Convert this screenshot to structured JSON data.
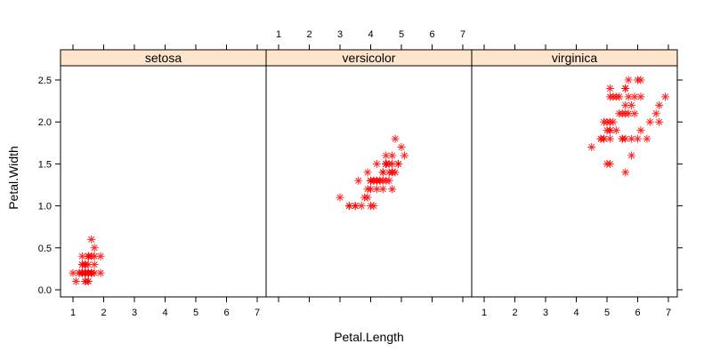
{
  "chart_data": {
    "type": "scatter",
    "title": "",
    "xlabel": "Petal.Length",
    "ylabel": "Petal.Width",
    "xlim": [
      0.6,
      7.3
    ],
    "ylim": [
      -0.1,
      2.65
    ],
    "x_ticks": [
      1,
      2,
      3,
      4,
      5,
      6,
      7
    ],
    "y_ticks": [
      "0.0",
      "0.5",
      "1.0",
      "1.5",
      "2.0",
      "2.5"
    ],
    "grid": false,
    "marker": "asterisk",
    "marker_color": "#FF0000",
    "strip_color": "#FFE5CC",
    "panels": [
      {
        "name": "setosa",
        "points": [
          [
            1.4,
            0.2
          ],
          [
            1.4,
            0.2
          ],
          [
            1.3,
            0.2
          ],
          [
            1.5,
            0.2
          ],
          [
            1.4,
            0.2
          ],
          [
            1.7,
            0.4
          ],
          [
            1.4,
            0.3
          ],
          [
            1.5,
            0.2
          ],
          [
            1.4,
            0.2
          ],
          [
            1.5,
            0.1
          ],
          [
            1.5,
            0.2
          ],
          [
            1.6,
            0.2
          ],
          [
            1.4,
            0.1
          ],
          [
            1.1,
            0.1
          ],
          [
            1.2,
            0.2
          ],
          [
            1.5,
            0.4
          ],
          [
            1.3,
            0.4
          ],
          [
            1.4,
            0.3
          ],
          [
            1.7,
            0.3
          ],
          [
            1.5,
            0.3
          ],
          [
            1.7,
            0.2
          ],
          [
            1.5,
            0.4
          ],
          [
            1.0,
            0.2
          ],
          [
            1.7,
            0.5
          ],
          [
            1.9,
            0.2
          ],
          [
            1.6,
            0.2
          ],
          [
            1.6,
            0.4
          ],
          [
            1.5,
            0.2
          ],
          [
            1.4,
            0.2
          ],
          [
            1.6,
            0.2
          ],
          [
            1.6,
            0.2
          ],
          [
            1.5,
            0.4
          ],
          [
            1.5,
            0.1
          ],
          [
            1.4,
            0.2
          ],
          [
            1.5,
            0.2
          ],
          [
            1.2,
            0.2
          ],
          [
            1.3,
            0.2
          ],
          [
            1.4,
            0.1
          ],
          [
            1.3,
            0.2
          ],
          [
            1.5,
            0.2
          ],
          [
            1.3,
            0.3
          ],
          [
            1.3,
            0.3
          ],
          [
            1.3,
            0.2
          ],
          [
            1.6,
            0.6
          ],
          [
            1.9,
            0.4
          ],
          [
            1.4,
            0.3
          ],
          [
            1.6,
            0.2
          ],
          [
            1.4,
            0.2
          ],
          [
            1.5,
            0.2
          ],
          [
            1.4,
            0.2
          ]
        ]
      },
      {
        "name": "versicolor",
        "points": [
          [
            4.7,
            1.4
          ],
          [
            4.5,
            1.5
          ],
          [
            4.9,
            1.5
          ],
          [
            4.0,
            1.3
          ],
          [
            4.6,
            1.5
          ],
          [
            4.5,
            1.3
          ],
          [
            4.7,
            1.6
          ],
          [
            3.3,
            1.0
          ],
          [
            4.6,
            1.3
          ],
          [
            3.9,
            1.4
          ],
          [
            3.5,
            1.0
          ],
          [
            4.2,
            1.5
          ],
          [
            4.0,
            1.0
          ],
          [
            4.7,
            1.4
          ],
          [
            3.6,
            1.3
          ],
          [
            4.4,
            1.4
          ],
          [
            4.5,
            1.5
          ],
          [
            4.1,
            1.0
          ],
          [
            4.5,
            1.5
          ],
          [
            3.9,
            1.1
          ],
          [
            4.8,
            1.8
          ],
          [
            4.0,
            1.3
          ],
          [
            4.9,
            1.5
          ],
          [
            4.7,
            1.2
          ],
          [
            4.3,
            1.3
          ],
          [
            4.4,
            1.4
          ],
          [
            4.8,
            1.4
          ],
          [
            5.0,
            1.7
          ],
          [
            4.5,
            1.5
          ],
          [
            3.5,
            1.0
          ],
          [
            3.8,
            1.1
          ],
          [
            3.7,
            1.0
          ],
          [
            3.9,
            1.2
          ],
          [
            5.1,
            1.6
          ],
          [
            4.5,
            1.5
          ],
          [
            4.5,
            1.6
          ],
          [
            4.7,
            1.5
          ],
          [
            4.4,
            1.3
          ],
          [
            4.1,
            1.3
          ],
          [
            4.0,
            1.3
          ],
          [
            4.4,
            1.2
          ],
          [
            4.6,
            1.4
          ],
          [
            4.0,
            1.2
          ],
          [
            3.3,
            1.0
          ],
          [
            4.2,
            1.3
          ],
          [
            4.2,
            1.2
          ],
          [
            4.2,
            1.3
          ],
          [
            4.3,
            1.3
          ],
          [
            3.0,
            1.1
          ],
          [
            4.1,
            1.3
          ]
        ]
      },
      {
        "name": "virginica",
        "points": [
          [
            6.0,
            2.5
          ],
          [
            5.1,
            1.9
          ],
          [
            5.9,
            2.1
          ],
          [
            5.6,
            1.8
          ],
          [
            5.8,
            2.2
          ],
          [
            6.6,
            2.1
          ],
          [
            4.5,
            1.7
          ],
          [
            6.3,
            1.8
          ],
          [
            5.8,
            1.8
          ],
          [
            6.1,
            2.5
          ],
          [
            5.1,
            2.0
          ],
          [
            5.3,
            1.9
          ],
          [
            5.5,
            2.1
          ],
          [
            5.0,
            2.0
          ],
          [
            5.1,
            2.4
          ],
          [
            5.3,
            2.3
          ],
          [
            5.5,
            1.8
          ],
          [
            6.7,
            2.2
          ],
          [
            6.9,
            2.3
          ],
          [
            5.0,
            1.5
          ],
          [
            5.7,
            2.3
          ],
          [
            4.9,
            2.0
          ],
          [
            6.7,
            2.0
          ],
          [
            4.9,
            1.8
          ],
          [
            5.7,
            2.1
          ],
          [
            6.0,
            1.8
          ],
          [
            4.8,
            1.8
          ],
          [
            4.9,
            1.8
          ],
          [
            5.6,
            2.1
          ],
          [
            5.8,
            1.6
          ],
          [
            6.1,
            1.9
          ],
          [
            6.4,
            2.0
          ],
          [
            5.6,
            2.2
          ],
          [
            5.1,
            1.5
          ],
          [
            5.6,
            1.4
          ],
          [
            6.1,
            2.3
          ],
          [
            5.6,
            2.4
          ],
          [
            5.5,
            1.8
          ],
          [
            4.8,
            1.8
          ],
          [
            5.4,
            2.1
          ],
          [
            5.6,
            2.4
          ],
          [
            5.1,
            2.3
          ],
          [
            5.1,
            1.9
          ],
          [
            5.9,
            2.3
          ],
          [
            5.7,
            2.5
          ],
          [
            5.2,
            2.3
          ],
          [
            5.0,
            1.9
          ],
          [
            5.2,
            2.0
          ],
          [
            5.4,
            2.3
          ],
          [
            5.1,
            1.8
          ]
        ]
      }
    ]
  }
}
